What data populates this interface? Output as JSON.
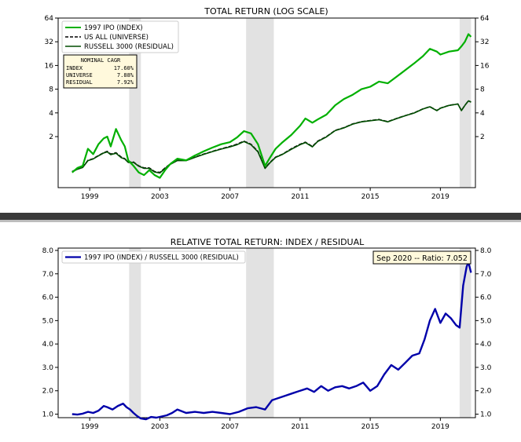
{
  "chart_data": [
    {
      "type": "line",
      "title": "TOTAL RETURN (LOG SCALE)",
      "y_scale": "log2",
      "ylim": [
        0.45,
        64
      ],
      "xlim": [
        1997.2,
        2021.0
      ],
      "y_ticks": [
        2,
        4,
        8,
        16,
        32,
        64
      ],
      "y_tick_labels": [
        "2",
        "4",
        "8",
        "16",
        "32",
        "64"
      ],
      "x_ticks": [
        1999,
        2003,
        2007,
        2011,
        2015,
        2019
      ],
      "x_tick_labels": [
        "1999",
        "2003",
        "2007",
        "2011",
        "2015",
        "2019"
      ],
      "shaded_periods": [
        [
          2001.25,
          2001.92
        ],
        [
          2007.92,
          2009.5
        ],
        [
          2020.1,
          2020.75
        ]
      ],
      "legend_position": "top-left",
      "grid": false,
      "series": [
        {
          "name": "1997 IPO (INDEX)",
          "color": "#00b000",
          "style": "solid",
          "x": [
            1998.0,
            1998.3,
            1998.6,
            1998.9,
            1999.2,
            1999.5,
            1999.8,
            2000.0,
            2000.2,
            2000.5,
            2000.8,
            2001.0,
            2001.2,
            2001.5,
            2001.8,
            2002.1,
            2002.4,
            2002.7,
            2003.0,
            2003.3,
            2003.6,
            2004.0,
            2004.5,
            2005.0,
            2005.5,
            2006.0,
            2006.5,
            2007.0,
            2007.4,
            2007.8,
            2008.2,
            2008.6,
            2009.0,
            2009.3,
            2009.6,
            2010.0,
            2010.5,
            2011.0,
            2011.3,
            2011.7,
            2012.0,
            2012.5,
            2013.0,
            2013.5,
            2014.0,
            2014.5,
            2015.0,
            2015.5,
            2016.0,
            2016.5,
            2017.0,
            2017.5,
            2018.0,
            2018.4,
            2018.8,
            2019.0,
            2019.5,
            2020.0,
            2020.2,
            2020.4,
            2020.6,
            2020.75
          ],
          "y": [
            0.7,
            0.8,
            0.85,
            1.4,
            1.2,
            1.6,
            1.9,
            2.0,
            1.5,
            2.5,
            1.8,
            1.5,
            1.0,
            0.85,
            0.7,
            0.65,
            0.75,
            0.65,
            0.6,
            0.75,
            0.9,
            1.05,
            1.0,
            1.15,
            1.3,
            1.45,
            1.6,
            1.7,
            1.95,
            2.35,
            2.2,
            1.6,
            0.85,
            1.1,
            1.4,
            1.7,
            2.1,
            2.75,
            3.4,
            3.0,
            3.3,
            3.8,
            5.0,
            6.0,
            6.8,
            8.0,
            8.6,
            10.0,
            9.5,
            11.5,
            14.0,
            17.0,
            21.0,
            26.0,
            24.0,
            22.0,
            24.0,
            25.0,
            28.0,
            32.0,
            40.0,
            37.0
          ]
        },
        {
          "name": "US ALL (UNIVERSE)",
          "color": "#000000",
          "style": "dashed",
          "x": [
            1998.0,
            1998.3,
            1998.6,
            1998.9,
            1999.2,
            1999.5,
            1999.8,
            2000.0,
            2000.2,
            2000.5,
            2000.8,
            2001.0,
            2001.2,
            2001.5,
            2001.8,
            2002.1,
            2002.4,
            2002.7,
            2003.0,
            2003.3,
            2003.6,
            2004.0,
            2004.5,
            2005.0,
            2005.5,
            2006.0,
            2006.5,
            2007.0,
            2007.4,
            2007.8,
            2008.2,
            2008.6,
            2009.0,
            2009.3,
            2009.6,
            2010.0,
            2010.5,
            2011.0,
            2011.3,
            2011.7,
            2012.0,
            2012.5,
            2013.0,
            2013.5,
            2014.0,
            2014.5,
            2015.0,
            2015.5,
            2016.0,
            2016.5,
            2017.0,
            2017.5,
            2018.0,
            2018.4,
            2018.8,
            2019.0,
            2019.5,
            2020.0,
            2020.2,
            2020.4,
            2020.6,
            2020.75
          ],
          "y": [
            0.72,
            0.78,
            0.82,
            1.0,
            1.05,
            1.15,
            1.25,
            1.3,
            1.2,
            1.25,
            1.1,
            1.05,
            0.95,
            0.95,
            0.85,
            0.8,
            0.8,
            0.72,
            0.7,
            0.8,
            0.9,
            1.0,
            1.0,
            1.1,
            1.2,
            1.3,
            1.4,
            1.5,
            1.6,
            1.75,
            1.6,
            1.3,
            0.8,
            0.95,
            1.1,
            1.2,
            1.4,
            1.6,
            1.7,
            1.5,
            1.75,
            2.0,
            2.4,
            2.6,
            2.9,
            3.1,
            3.2,
            3.3,
            3.1,
            3.4,
            3.7,
            4.0,
            4.5,
            4.8,
            4.3,
            4.6,
            5.0,
            5.2,
            4.3,
            5.0,
            5.7,
            5.5
          ]
        },
        {
          "name": "RUSSELL 3000 (RESIDUAL)",
          "color": "#004d00",
          "style": "solid",
          "x": [
            1998.0,
            1998.3,
            1998.6,
            1998.9,
            1999.2,
            1999.5,
            1999.8,
            2000.0,
            2000.2,
            2000.5,
            2000.8,
            2001.0,
            2001.2,
            2001.5,
            2001.8,
            2002.1,
            2002.4,
            2002.7,
            2003.0,
            2003.3,
            2003.6,
            2004.0,
            2004.5,
            2005.0,
            2005.5,
            2006.0,
            2006.5,
            2007.0,
            2007.4,
            2007.8,
            2008.2,
            2008.6,
            2009.0,
            2009.3,
            2009.6,
            2010.0,
            2010.5,
            2011.0,
            2011.3,
            2011.7,
            2012.0,
            2012.5,
            2013.0,
            2013.5,
            2014.0,
            2014.5,
            2015.0,
            2015.5,
            2016.0,
            2016.5,
            2017.0,
            2017.5,
            2018.0,
            2018.4,
            2018.8,
            2019.0,
            2019.5,
            2020.0,
            2020.2,
            2020.4,
            2020.6,
            2020.75
          ],
          "y": [
            0.71,
            0.77,
            0.81,
            0.99,
            1.04,
            1.14,
            1.24,
            1.28,
            1.18,
            1.23,
            1.08,
            1.04,
            0.94,
            0.94,
            0.84,
            0.79,
            0.79,
            0.71,
            0.69,
            0.79,
            0.89,
            0.99,
            0.99,
            1.09,
            1.19,
            1.29,
            1.39,
            1.48,
            1.58,
            1.73,
            1.58,
            1.28,
            0.79,
            0.94,
            1.09,
            1.19,
            1.38,
            1.58,
            1.68,
            1.48,
            1.73,
            1.98,
            2.38,
            2.58,
            2.88,
            3.08,
            3.18,
            3.28,
            3.08,
            3.38,
            3.68,
            3.98,
            4.48,
            4.78,
            4.28,
            4.58,
            4.98,
            5.18,
            4.28,
            4.98,
            5.68,
            5.48
          ]
        }
      ],
      "annotation": {
        "title": "NOMINAL CAGR",
        "rows": [
          {
            "label": "INDEX",
            "value": "17.60%"
          },
          {
            "label": "UNIVERSE",
            "value": "7.88%"
          },
          {
            "label": "RESIDUAL",
            "value": "7.92%"
          }
        ],
        "background": "#fff9dc"
      }
    },
    {
      "type": "line",
      "title": "RELATIVE TOTAL RETURN: INDEX / RESIDUAL",
      "ylim": [
        0.85,
        8.1
      ],
      "xlim": [
        1997.2,
        2021.0
      ],
      "y_ticks": [
        1.0,
        2.0,
        3.0,
        4.0,
        5.0,
        6.0,
        7.0,
        8.0
      ],
      "y_tick_labels": [
        "1.0",
        "2.0",
        "3.0",
        "4.0",
        "5.0",
        "6.0",
        "7.0",
        "8.0"
      ],
      "x_ticks": [
        1999,
        2003,
        2007,
        2011,
        2015,
        2019
      ],
      "x_tick_labels": [
        "1999",
        "2003",
        "2007",
        "2011",
        "2015",
        "2019"
      ],
      "shaded_periods": [
        [
          2001.25,
          2001.92
        ],
        [
          2007.92,
          2009.5
        ],
        [
          2020.1,
          2020.75
        ]
      ],
      "legend_position": "top-left",
      "grid": false,
      "series": [
        {
          "name": "1997 IPO (INDEX) / RUSSELL 3000 (RESIDUAL)",
          "color": "#0000aa",
          "style": "solid",
          "x": [
            1998.0,
            1998.3,
            1998.6,
            1998.9,
            1999.2,
            1999.5,
            1999.8,
            2000.0,
            2000.3,
            2000.6,
            2000.9,
            2001.1,
            2001.3,
            2001.5,
            2001.7,
            2001.9,
            2002.2,
            2002.5,
            2002.8,
            2003.1,
            2003.4,
            2003.7,
            2004.0,
            2004.5,
            2005.0,
            2005.5,
            2006.0,
            2006.5,
            2007.0,
            2007.5,
            2008.0,
            2008.5,
            2009.0,
            2009.4,
            2009.8,
            2010.2,
            2010.6,
            2011.0,
            2011.4,
            2011.8,
            2012.2,
            2012.6,
            2013.0,
            2013.4,
            2013.8,
            2014.2,
            2014.6,
            2015.0,
            2015.4,
            2015.8,
            2016.2,
            2016.6,
            2017.0,
            2017.4,
            2017.8,
            2018.1,
            2018.4,
            2018.7,
            2019.0,
            2019.3,
            2019.6,
            2019.9,
            2020.1,
            2020.3,
            2020.5,
            2020.6,
            2020.75
          ],
          "y": [
            1.0,
            0.98,
            1.02,
            1.1,
            1.05,
            1.15,
            1.35,
            1.3,
            1.2,
            1.35,
            1.45,
            1.3,
            1.2,
            1.05,
            0.92,
            0.82,
            0.78,
            0.88,
            0.85,
            0.9,
            0.95,
            1.05,
            1.2,
            1.05,
            1.1,
            1.05,
            1.1,
            1.05,
            1.0,
            1.1,
            1.25,
            1.3,
            1.2,
            1.6,
            1.7,
            1.8,
            1.9,
            2.0,
            2.1,
            1.95,
            2.2,
            2.0,
            2.15,
            2.2,
            2.1,
            2.2,
            2.35,
            2.0,
            2.2,
            2.7,
            3.1,
            2.9,
            3.2,
            3.5,
            3.6,
            4.2,
            5.0,
            5.5,
            4.9,
            5.3,
            5.1,
            4.8,
            4.7,
            6.5,
            7.3,
            7.5,
            7.05
          ]
        }
      ],
      "annotation": {
        "text": "Sep 2020 -- Ratio: 7.052",
        "position": "top-right",
        "background": "#fff9dc"
      }
    }
  ]
}
